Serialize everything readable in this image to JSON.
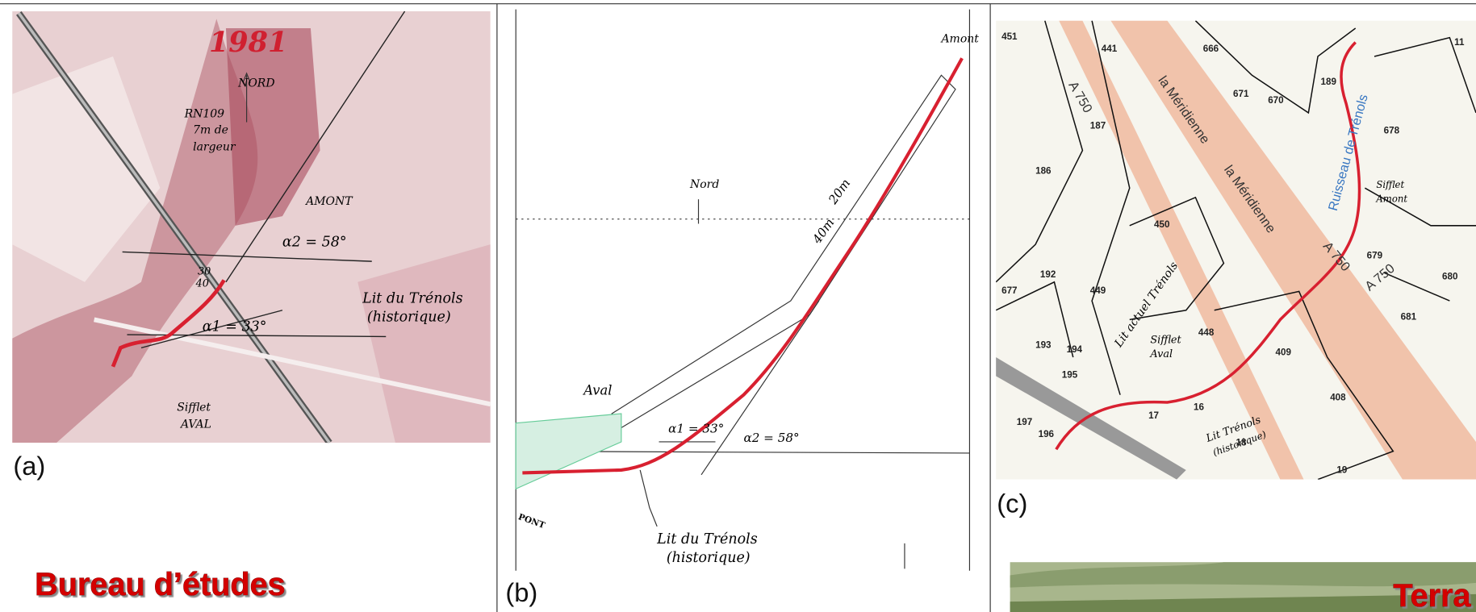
{
  "panels": [
    {
      "label": "(a)",
      "annotations": [
        "1981",
        "NORD",
        "RN109",
        "7m de",
        "largeur",
        "AMONT",
        "α2 = 58°",
        "30",
        "40",
        "Lit du Trénols",
        "(historique)",
        "α1 = 33°",
        "Sifflet",
        "AVAL"
      ]
    },
    {
      "label": "(b)",
      "annotations": [
        "Nord",
        "Amont",
        "Aval",
        "40m",
        "20m",
        "α1 = 33°",
        "α2 = 58°",
        "Lit du Trénols",
        "(historique)",
        "PONT"
      ]
    },
    {
      "label": "(c)",
      "annotations": [
        "A 750",
        "la Méridienne",
        "la Méridienne",
        "A 750",
        "A 750",
        "Ruisseau de Trénols",
        "Sifflet",
        "Amont",
        "Lit actuel Trénols",
        "Sifflet",
        "Aval",
        "Lit Trénols",
        "(historique)"
      ],
      "parcels": [
        "451",
        "441",
        "666",
        "671",
        "670",
        "189",
        "11",
        "187",
        "678",
        "186",
        "450",
        "680",
        "192",
        "449",
        "677",
        "448",
        "409",
        "193",
        "194",
        "195",
        "408",
        "197",
        "16",
        "17",
        "18",
        "196",
        "19",
        "681",
        "679"
      ]
    }
  ],
  "sections": {
    "bureau": "Bureau d’études",
    "terrain": "Terra"
  }
}
